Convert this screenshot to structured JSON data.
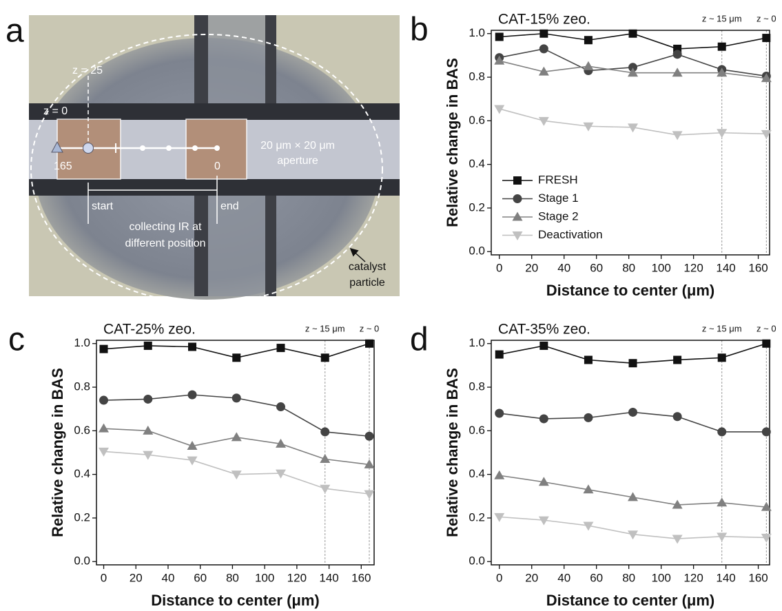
{
  "image_panel": {
    "panel_label": "a",
    "z_top": "z = 25",
    "z_bottom": "z = 0",
    "start_position": "165",
    "end_position": "0",
    "aperture_size": "20 μm × 20 μm",
    "aperture": "aperture",
    "start": "start",
    "end": "end",
    "caption_line1": "collecting IR at",
    "caption_line2": "different position",
    "particle_line1": "catalyst",
    "particle_line2": "particle"
  },
  "chart_data": [
    {
      "type": "line",
      "panel_label": "b",
      "title": "CAT-15% zeo.",
      "x_label": "Distance to center (μm)",
      "y_label": "Relative change in BAS",
      "x": [
        0,
        27.5,
        55,
        82.5,
        110,
        137.5,
        165
      ],
      "xlim": [
        -5,
        167
      ],
      "xticks": [
        0,
        20,
        40,
        60,
        80,
        100,
        120,
        140,
        160
      ],
      "ylim": [
        -0.015,
        1.015
      ],
      "yticks": [
        {
          "value": 0,
          "label": "0.0"
        },
        0.2,
        0.4,
        0.6,
        0.8,
        {
          "value": 1,
          "label": "1.0"
        }
      ],
      "vlines": [
        {
          "x": 137.5,
          "label": "z ~ 15 μm"
        },
        {
          "x": 165,
          "label": "z ~ 0"
        }
      ],
      "legend": "lower left",
      "series": [
        {
          "name": "FRESH",
          "color": "#111111",
          "marker": "square",
          "values": [
            0.985,
            1.0,
            0.97,
            1.0,
            0.93,
            0.94,
            0.98
          ]
        },
        {
          "name": "Stage 1",
          "color": "#444444",
          "marker": "circle",
          "values": [
            0.89,
            0.93,
            0.83,
            0.845,
            0.905,
            0.835,
            0.805
          ]
        },
        {
          "name": "Stage 2",
          "color": "#808080",
          "marker": "triangle-up",
          "values": [
            0.875,
            0.825,
            0.85,
            0.82,
            0.82,
            0.82,
            0.795
          ]
        },
        {
          "name": "Deactivation",
          "color": "#c0c0c0",
          "marker": "triangle-down",
          "values": [
            0.655,
            0.6,
            0.575,
            0.57,
            0.535,
            0.545,
            0.54
          ]
        }
      ]
    },
    {
      "type": "line",
      "panel_label": "c",
      "title": "CAT-25% zeo.",
      "x_label": "Distance to center (μm)",
      "y_label": "Relative change in BAS",
      "x": [
        0,
        27.5,
        55,
        82.5,
        110,
        137.5,
        165
      ],
      "xlim": [
        -4.5,
        168
      ],
      "xticks": [
        0,
        20,
        40,
        60,
        80,
        100,
        120,
        140,
        160
      ],
      "ylim": [
        -0.015,
        1.015
      ],
      "yticks": [
        {
          "value": 0,
          "label": "0.0"
        },
        0.2,
        0.4,
        0.6,
        0.8,
        {
          "value": 1,
          "label": "1.0"
        }
      ],
      "vlines": [
        {
          "x": 137.5,
          "label": "z ~ 15 μm"
        },
        {
          "x": 165,
          "label": "z ~ 0"
        }
      ],
      "series": [
        {
          "color": "#111111",
          "marker": "square",
          "values": [
            0.975,
            0.99,
            0.985,
            0.935,
            0.98,
            0.935,
            1.0
          ]
        },
        {
          "color": "#444444",
          "marker": "circle",
          "values": [
            0.74,
            0.745,
            0.765,
            0.75,
            0.71,
            0.595,
            0.575
          ]
        },
        {
          "color": "#808080",
          "marker": "triangle-up",
          "values": [
            0.61,
            0.6,
            0.53,
            0.57,
            0.54,
            0.47,
            0.445
          ]
        },
        {
          "color": "#c0c0c0",
          "marker": "triangle-down",
          "values": [
            0.505,
            0.49,
            0.465,
            0.4,
            0.405,
            0.335,
            0.31
          ]
        }
      ]
    },
    {
      "type": "line",
      "panel_label": "d",
      "title": "CAT-35% zeo.",
      "x_label": "Distance to center (μm)",
      "y_label": "Relative change in BAS",
      "x": [
        0,
        27.5,
        55,
        82.5,
        110,
        137.5,
        165
      ],
      "xlim": [
        -5,
        167
      ],
      "xticks": [
        0,
        20,
        40,
        60,
        80,
        100,
        120,
        140,
        160
      ],
      "ylim": [
        -0.015,
        1.015
      ],
      "yticks": [
        {
          "value": 0,
          "label": "0.0"
        },
        0.2,
        0.4,
        0.6,
        0.8,
        {
          "value": 1,
          "label": "1.0"
        }
      ],
      "vlines": [
        {
          "x": 137.5,
          "label": "z ~ 15 μm"
        },
        {
          "x": 165,
          "label": "z ~ 0"
        }
      ],
      "series": [
        {
          "color": "#111111",
          "marker": "square",
          "values": [
            0.95,
            0.99,
            0.925,
            0.91,
            0.925,
            0.935,
            1.0
          ]
        },
        {
          "color": "#444444",
          "marker": "circle",
          "values": [
            0.68,
            0.655,
            0.66,
            0.685,
            0.665,
            0.595,
            0.595
          ]
        },
        {
          "color": "#808080",
          "marker": "triangle-up",
          "values": [
            0.395,
            0.365,
            0.33,
            0.295,
            0.26,
            0.27,
            0.25
          ]
        },
        {
          "color": "#c0c0c0",
          "marker": "triangle-down",
          "values": [
            0.205,
            0.19,
            0.165,
            0.125,
            0.105,
            0.115,
            0.11
          ]
        }
      ]
    }
  ]
}
